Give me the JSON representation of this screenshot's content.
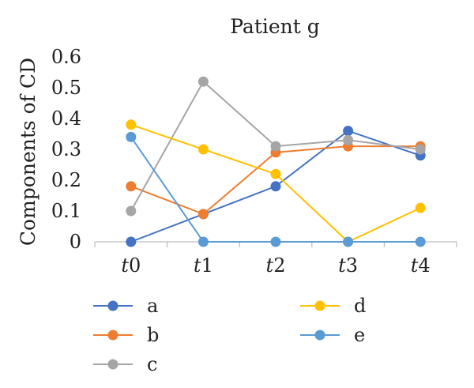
{
  "chart_data": {
    "type": "line",
    "title": "Patient g",
    "xlabel": "",
    "ylabel": "Components of CD",
    "categories": [
      {
        "prefix": "t",
        "suffix": "0"
      },
      {
        "prefix": "t",
        "suffix": "1"
      },
      {
        "prefix": "t",
        "suffix": "2"
      },
      {
        "prefix": "t",
        "suffix": "3"
      },
      {
        "prefix": "t",
        "suffix": "4"
      }
    ],
    "ylim": [
      0,
      0.6
    ],
    "yticks": [
      "0",
      "0.1",
      "0.2",
      "0.3",
      "0.4",
      "0.5",
      "0.6"
    ],
    "grid": false,
    "legend_position": "bottom",
    "series": [
      {
        "name": "a",
        "color": "#4472C4",
        "values": [
          0,
          0.09,
          0.18,
          0.36,
          0.28
        ]
      },
      {
        "name": "b",
        "color": "#ED7D31",
        "values": [
          0.18,
          0.09,
          0.29,
          0.31,
          0.31
        ]
      },
      {
        "name": "c",
        "color": "#A5A5A5",
        "values": [
          0.1,
          0.52,
          0.31,
          0.33,
          0.3
        ]
      },
      {
        "name": "d",
        "color": "#FFC000",
        "values": [
          0.38,
          0.3,
          0.22,
          0,
          0.11
        ]
      },
      {
        "name": "e",
        "color": "#5B9BD5",
        "values": [
          0.34,
          0,
          0,
          0,
          0
        ]
      }
    ]
  }
}
